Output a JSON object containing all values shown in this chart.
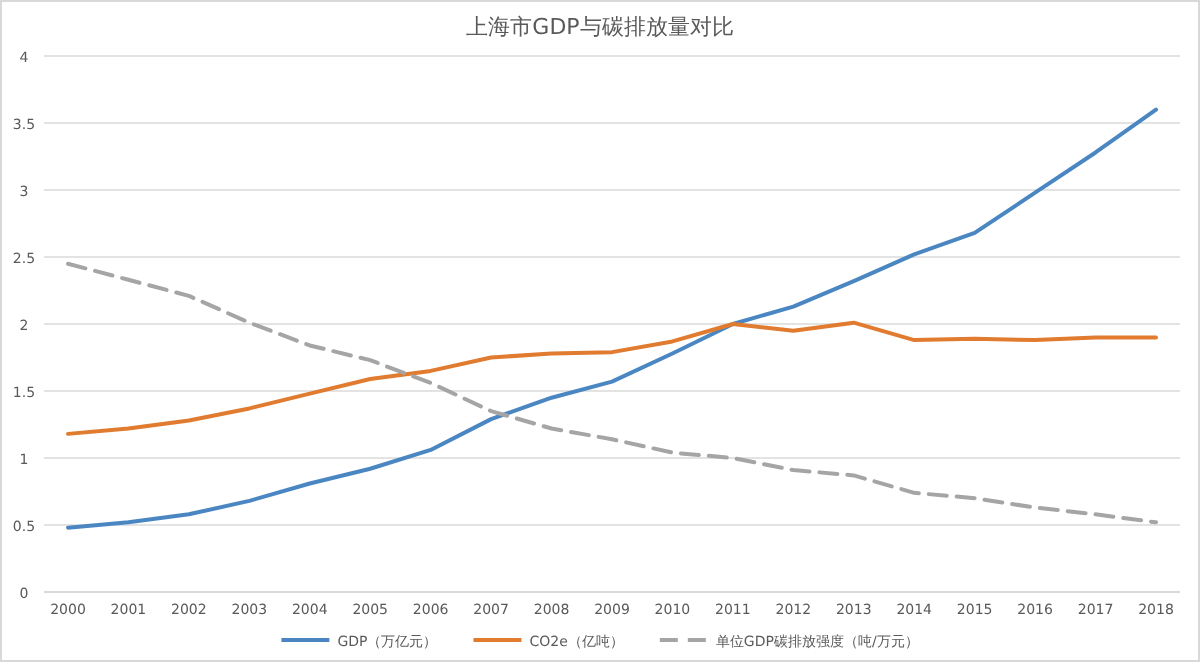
{
  "chart_data": {
    "type": "line",
    "title": "上海市GDP与碳排放量对比",
    "categories": [
      "2000",
      "2001",
      "2002",
      "2003",
      "2004",
      "2005",
      "2006",
      "2007",
      "2008",
      "2009",
      "2010",
      "2011",
      "2012",
      "2013",
      "2014",
      "2015",
      "2016",
      "2017",
      "2018"
    ],
    "series": [
      {
        "name": "GDP（万亿元）",
        "color": "#4a87c2",
        "values": [
          0.48,
          0.52,
          0.58,
          0.68,
          0.81,
          0.92,
          1.06,
          1.29,
          1.45,
          1.57,
          1.78,
          2.0,
          2.13,
          2.32,
          2.52,
          2.68,
          2.98,
          3.28,
          3.6
        ]
      },
      {
        "name": "CO2e（亿吨）",
        "color": "#e07b2f",
        "values": [
          1.18,
          1.22,
          1.28,
          1.37,
          1.48,
          1.59,
          1.65,
          1.75,
          1.78,
          1.79,
          1.87,
          2.0,
          1.95,
          2.01,
          1.88,
          1.89,
          1.88,
          1.9,
          1.9
        ]
      },
      {
        "name": "单位GDP碳排放强度（吨/万元）",
        "color": "#a5a5a5",
        "line_style": "dashed",
        "values": [
          2.45,
          2.33,
          2.21,
          2.01,
          1.84,
          1.73,
          1.56,
          1.35,
          1.22,
          1.14,
          1.04,
          1.0,
          0.91,
          0.87,
          0.74,
          0.7,
          0.63,
          0.58,
          0.52
        ]
      }
    ],
    "ylim": [
      0,
      4
    ],
    "yticks": [
      0,
      0.5,
      1,
      1.5,
      2,
      2.5,
      3,
      3.5,
      4
    ],
    "grid": "y",
    "legend": "bottom"
  }
}
